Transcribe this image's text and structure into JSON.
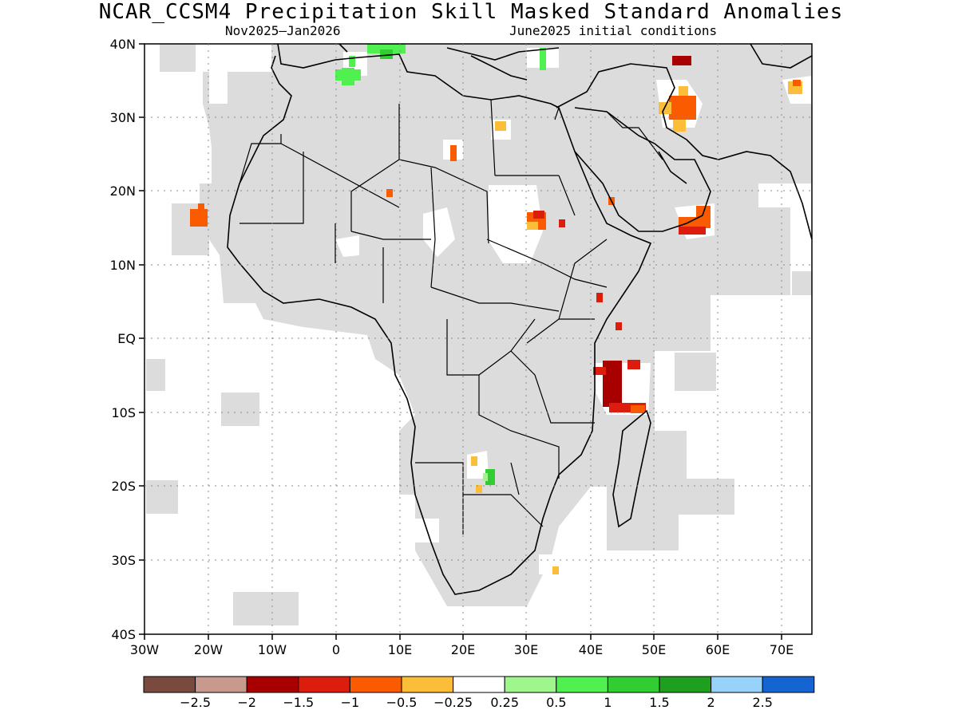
{
  "title": "NCAR_CCSM4 Precipitation Skill Masked Standard Anomalies",
  "subtitle_left": "Nov2025–Jan2026",
  "subtitle_right": "June2025 initial conditions",
  "lat_labels": [
    "40N",
    "30N",
    "20N",
    "10N",
    "EQ",
    "10S",
    "20S",
    "30S",
    "40S"
  ],
  "lon_labels": [
    "30W",
    "20W",
    "10W",
    "0",
    "10E",
    "20E",
    "30E",
    "40E",
    "50E",
    "60E",
    "70E"
  ],
  "colorbar": {
    "colors": [
      "#7a4a3e",
      "#c89a8e",
      "#a80000",
      "#dc1c0c",
      "#fa5a00",
      "#fcbe38",
      "#ffffff",
      "#9ef68c",
      "#50f050",
      "#32cd32",
      "#1ea01e",
      "#96d2fa",
      "#1464d2"
    ],
    "labels": [
      "−2.5",
      "−2",
      "−1.5",
      "−1",
      "−0.5",
      "−0.25",
      "0.25",
      "0.5",
      "1",
      "1.5",
      "2",
      "2.5"
    ]
  },
  "colors": {
    "land_mask": "#dcdcdc",
    "coast": "#000000"
  }
}
